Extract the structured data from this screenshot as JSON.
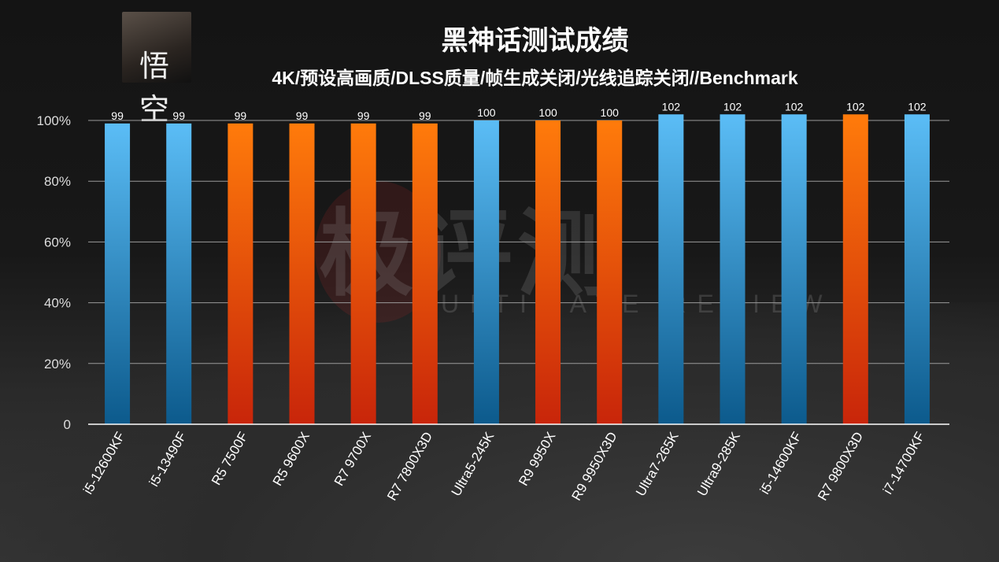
{
  "header": {
    "title": "黑神话测试成绩",
    "subtitle": "4K/预设高画质/DLSS质量/帧生成关闭/光线追踪关闭//Benchmark",
    "thumbnail_glyph": "悟空"
  },
  "watermark": {
    "main": "极评测",
    "sub": "ULTIMATE REVIEW"
  },
  "colors": {
    "intel_top": "#5bbdf6",
    "intel_bottom": "#0c5a8c",
    "amd_top": "#ff7b0b",
    "amd_bottom": "#c8250a",
    "grid": "#9a9a9a",
    "axis": "#ffffff"
  },
  "chart_data": {
    "type": "bar",
    "title": "黑神话测试成绩",
    "subtitle": "4K/预设高画质/DLSS质量/帧生成关闭/光线追踪关闭//Benchmark",
    "categories": [
      "i5-12600KF",
      "i5-13490F",
      "R5 7500F",
      "R5 9600X",
      "R7 9700X",
      "R7 7800X3D",
      "Ultra5-245K",
      "R9 9950X",
      "R9 9950X3D",
      "Ultra7-265K",
      "Ultra9-285K",
      "i5-14600KF",
      "R7 9800X3D",
      "i7-14700KF"
    ],
    "values": [
      99,
      99,
      99,
      99,
      99,
      99,
      100,
      100,
      100,
      102,
      102,
      102,
      102,
      102
    ],
    "vendor": [
      "intel",
      "intel",
      "amd",
      "amd",
      "amd",
      "amd",
      "intel",
      "amd",
      "amd",
      "intel",
      "intel",
      "intel",
      "amd",
      "intel"
    ],
    "yticks": [
      "0",
      "20%",
      "40%",
      "60%",
      "80%",
      "100%"
    ],
    "ylim": [
      0,
      100
    ],
    "grid": true,
    "legend": "none"
  }
}
